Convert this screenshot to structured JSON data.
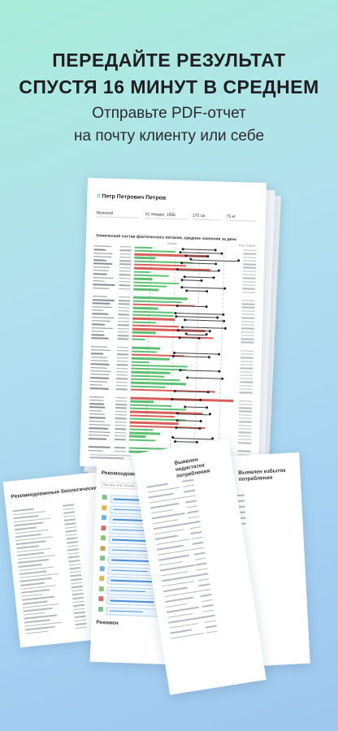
{
  "headline": {
    "line1": "ПЕРЕДАЙТЕ РЕЗУЛЬТАТ",
    "line2": "СПУСТЯ 16 МИНУТ В СРЕДНЕМ"
  },
  "subline": {
    "line1": "Отправьте PDF-отчет",
    "line2": "на почту клиенту или себе"
  },
  "report": {
    "name": "Петр Петрович Петров",
    "sex": "Мужской",
    "birth_date": "01 января, 1996",
    "height": "175 см",
    "weight": "75 кг",
    "title": "Химический состав фактического питания, средние значения за день",
    "column_norm": "Норма",
    "column_right": "Над. норма"
  },
  "pages": {
    "p1_title": "Рекомендованные биологически активные",
    "p2_title": "Рекомендованные биологически акт",
    "p2_subtitle": "Витамин Б-Ф, Магний, Б6 + Магнит и ...",
    "p2_section": "Рекомен",
    "p3_title": "Выявлен недостаток потребления",
    "p4_title": "Выявлен избыток потребления"
  }
}
